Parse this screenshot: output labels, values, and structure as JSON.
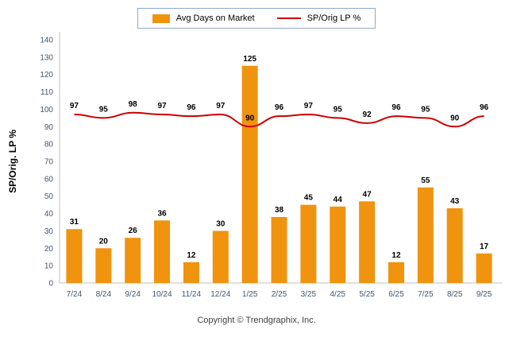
{
  "footer": {
    "copyright": "Copyright © Trendgraphix, Inc."
  },
  "chart_data": {
    "type": "bar+line",
    "categories": [
      "7/24",
      "8/24",
      "9/24",
      "10/24",
      "11/24",
      "12/24",
      "1/25",
      "2/25",
      "3/25",
      "4/25",
      "5/25",
      "6/25",
      "7/25",
      "8/25",
      "9/25"
    ],
    "series": [
      {
        "name": "Avg Days on Market",
        "type": "bar",
        "color": "#F0930E",
        "values": [
          31,
          20,
          26,
          36,
          12,
          30,
          125,
          38,
          45,
          44,
          47,
          12,
          55,
          43,
          17
        ]
      },
      {
        "name": "SP/Orig LP %",
        "type": "line",
        "color": "#CC0000",
        "values": [
          97,
          95,
          98,
          97,
          96,
          97,
          90,
          96,
          97,
          95,
          92,
          96,
          95,
          90,
          96
        ]
      }
    ],
    "ylabel": "SP/Orig. LP %",
    "ylim": [
      0,
      140
    ],
    "ytick_step": 10,
    "legend_position": "top",
    "grid": false,
    "axis_color": "#BFBFBF",
    "tick_label_color": "#44546A",
    "value_label_color": "#000000",
    "legend_border_color": "#8FAACC"
  }
}
